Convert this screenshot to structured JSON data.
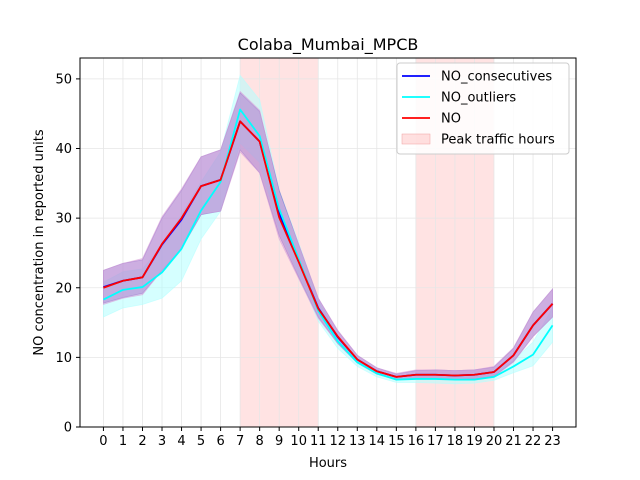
{
  "chart_data": {
    "type": "line",
    "title": "Colaba_Mumbai_MPCB",
    "xlabel": "Hours",
    "ylabel": "NO concentration in reported units",
    "x": [
      0,
      1,
      2,
      3,
      4,
      5,
      6,
      7,
      8,
      9,
      10,
      11,
      12,
      13,
      14,
      15,
      16,
      17,
      18,
      19,
      20,
      21,
      22,
      23
    ],
    "xlim": [
      -1.2,
      24.2
    ],
    "ylim": [
      0,
      53
    ],
    "yticks": [
      0,
      10,
      20,
      30,
      40,
      50
    ],
    "grid": true,
    "legend_position": "top-right",
    "shaded_regions": [
      {
        "name": "Peak traffic hours",
        "ranges": [
          [
            7,
            11
          ],
          [
            16,
            20
          ]
        ],
        "color": "#ffcccc"
      }
    ],
    "series": [
      {
        "name": "NO_consecutives",
        "color": "#0000ff",
        "band_color": "#7b68c9",
        "values": [
          20.1,
          21.0,
          21.5,
          26.2,
          29.8,
          34.6,
          35.5,
          43.9,
          41.0,
          30.7,
          23.8,
          17.1,
          12.9,
          9.7,
          8.0,
          7.2,
          7.5,
          7.5,
          7.4,
          7.5,
          7.9,
          10.3,
          14.6,
          17.7
        ],
        "lower": [
          17.8,
          18.6,
          19.2,
          22.5,
          25.6,
          30.5,
          31.0,
          39.8,
          36.5,
          27.5,
          21.5,
          15.8,
          12.0,
          9.2,
          7.6,
          6.8,
          6.9,
          6.9,
          6.8,
          6.9,
          7.3,
          9.4,
          13.0,
          15.8
        ],
        "upper": [
          22.5,
          23.5,
          24.0,
          30.0,
          34.0,
          38.8,
          39.8,
          48.0,
          45.3,
          34.0,
          26.2,
          18.5,
          13.8,
          10.3,
          8.5,
          7.6,
          8.1,
          8.2,
          8.1,
          8.2,
          8.6,
          11.3,
          16.5,
          19.8
        ]
      },
      {
        "name": "NO_outliers",
        "color": "#00ffff",
        "band_color": "#b3ffff",
        "values": [
          18.3,
          19.7,
          20.1,
          22.2,
          25.6,
          31.1,
          35.2,
          45.6,
          41.8,
          31.3,
          24.1,
          16.7,
          12.3,
          9.3,
          7.7,
          6.8,
          6.9,
          6.9,
          6.8,
          6.8,
          7.2,
          8.7,
          10.4,
          14.6
        ],
        "lower": [
          15.8,
          17.1,
          17.6,
          18.5,
          21.0,
          27.0,
          31.0,
          40.8,
          38.0,
          28.5,
          21.8,
          15.2,
          11.3,
          8.7,
          7.2,
          6.4,
          6.4,
          6.3,
          6.2,
          6.3,
          6.7,
          7.8,
          8.8,
          12.2
        ],
        "upper": [
          20.8,
          22.3,
          22.7,
          26.0,
          30.5,
          35.2,
          39.5,
          50.5,
          47.0,
          34.0,
          26.5,
          18.2,
          13.2,
          9.9,
          8.2,
          7.2,
          7.4,
          7.5,
          7.4,
          7.3,
          7.8,
          9.6,
          12.2,
          17.1
        ]
      },
      {
        "name": "NO",
        "color": "#ff0000",
        "band_color": "#d9a0d9",
        "values": [
          20.0,
          21.0,
          21.5,
          26.3,
          30.0,
          34.6,
          35.5,
          43.9,
          41.0,
          30.1,
          23.7,
          17.0,
          13.0,
          9.7,
          8.0,
          7.2,
          7.5,
          7.5,
          7.4,
          7.5,
          7.9,
          10.3,
          14.6,
          17.7
        ],
        "lower": [
          17.6,
          18.5,
          19.0,
          22.5,
          25.8,
          30.6,
          31.0,
          39.5,
          36.5,
          27.0,
          21.3,
          15.6,
          12.0,
          9.2,
          7.6,
          6.8,
          6.9,
          6.9,
          6.8,
          6.8,
          7.2,
          9.3,
          13.0,
          15.8
        ],
        "upper": [
          22.5,
          23.5,
          24.2,
          30.2,
          34.2,
          38.8,
          39.8,
          48.2,
          45.5,
          33.5,
          26.2,
          18.5,
          13.9,
          10.3,
          8.5,
          7.7,
          8.2,
          8.2,
          8.1,
          8.2,
          8.7,
          11.4,
          16.5,
          19.8
        ]
      }
    ]
  }
}
